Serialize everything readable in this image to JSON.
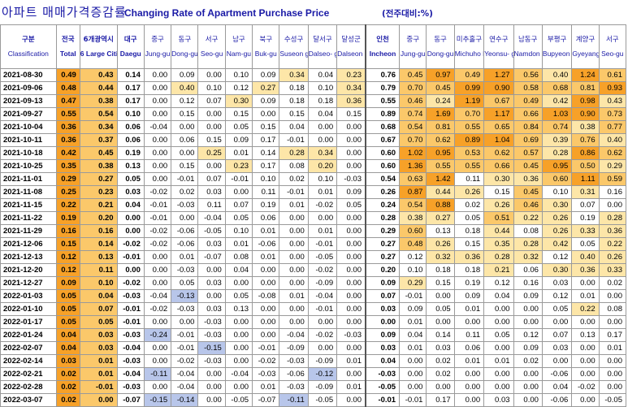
{
  "title_ko": "아파트 매매가격증감률",
  "title_en": "Changing Rate of Apartment Purchase Price",
  "unit": "(전주대비:%)",
  "columns": [
    {
      "ko": "구분",
      "en": "Classification"
    },
    {
      "ko": "전국",
      "en": "Total"
    },
    {
      "ko": "6개광역시",
      "en": "6 Large Cities"
    },
    {
      "ko": "대구",
      "en": "Daegu"
    },
    {
      "ko": "중구",
      "en": "Jung-gu"
    },
    {
      "ko": "동구",
      "en": "Dong-gu"
    },
    {
      "ko": "서구",
      "en": "Seo-gu"
    },
    {
      "ko": "남구",
      "en": "Nam-gu"
    },
    {
      "ko": "북구",
      "en": "Buk-gu"
    },
    {
      "ko": "수성구",
      "en": "Suseon g-gu"
    },
    {
      "ko": "달서구",
      "en": "Dalseo- gu"
    },
    {
      "ko": "달성군",
      "en": "Dalseon g-gun"
    },
    {
      "ko": "인천",
      "en": "Incheon"
    },
    {
      "ko": "중구",
      "en": "Jung-gu"
    },
    {
      "ko": "동구",
      "en": "Dong-gu"
    },
    {
      "ko": "미추홀구",
      "en": "Michuho l-gu"
    },
    {
      "ko": "연수구",
      "en": "Yeonsu- gu"
    },
    {
      "ko": "남동구",
      "en": "Namdon g-gu"
    },
    {
      "ko": "부평구",
      "en": "Bupyeon g-gu"
    },
    {
      "ko": "계양구",
      "en": "Gyeyang -gu"
    },
    {
      "ko": "서구",
      "en": "Seo-gu"
    }
  ],
  "rows": [
    [
      "2021-08-30",
      "0.49",
      "0.43",
      "0.14",
      "0.00",
      "0.09",
      "0.00",
      "0.10",
      "0.09",
      "0.34",
      "0.04",
      "0.23",
      "0.76",
      "0.45",
      "0.97",
      "0.49",
      "1.27",
      "0.56",
      "0.40",
      "1.24",
      "0.61"
    ],
    [
      "2021-09-06",
      "0.48",
      "0.44",
      "0.17",
      "0.00",
      "0.40",
      "0.10",
      "0.12",
      "0.27",
      "0.18",
      "0.10",
      "0.34",
      "0.79",
      "0.70",
      "0.45",
      "0.99",
      "0.90",
      "0.58",
      "0.68",
      "0.81",
      "0.93"
    ],
    [
      "2021-09-13",
      "0.47",
      "0.38",
      "0.17",
      "0.00",
      "0.12",
      "0.07",
      "0.30",
      "0.09",
      "0.18",
      "0.18",
      "0.36",
      "0.55",
      "0.46",
      "0.24",
      "1.19",
      "0.67",
      "0.49",
      "0.42",
      "0.98",
      "0.43"
    ],
    [
      "2021-09-27",
      "0.55",
      "0.54",
      "0.10",
      "0.00",
      "0.15",
      "0.00",
      "0.15",
      "0.00",
      "0.15",
      "0.04",
      "0.15",
      "0.89",
      "0.74",
      "1.69",
      "0.70",
      "1.17",
      "0.66",
      "1.03",
      "0.90",
      "0.73"
    ],
    [
      "2021-10-04",
      "0.36",
      "0.34",
      "0.06",
      "-0.04",
      "0.00",
      "0.00",
      "0.05",
      "0.15",
      "0.04",
      "0.00",
      "0.00",
      "0.68",
      "0.54",
      "0.81",
      "0.55",
      "0.65",
      "0.84",
      "0.74",
      "0.38",
      "0.77"
    ],
    [
      "2021-10-11",
      "0.36",
      "0.37",
      "0.06",
      "0.00",
      "0.06",
      "0.15",
      "0.09",
      "0.17",
      "-0.01",
      "0.00",
      "0.00",
      "0.67",
      "0.70",
      "0.62",
      "0.89",
      "1.04",
      "0.69",
      "0.39",
      "0.76",
      "0.40"
    ],
    [
      "2021-10-18",
      "0.42",
      "0.45",
      "0.19",
      "0.00",
      "0.00",
      "0.25",
      "0.01",
      "0.14",
      "0.28",
      "0.34",
      "0.00",
      "0.60",
      "1.02",
      "0.95",
      "0.53",
      "0.62",
      "0.57",
      "0.28",
      "0.86",
      "0.62"
    ],
    [
      "2021-10-25",
      "0.35",
      "0.38",
      "0.13",
      "0.00",
      "0.15",
      "0.00",
      "0.23",
      "0.17",
      "0.08",
      "0.20",
      "0.00",
      "0.60",
      "1.36",
      "0.55",
      "0.55",
      "0.66",
      "0.45",
      "0.95",
      "0.50",
      "0.29"
    ],
    [
      "2021-11-01",
      "0.29",
      "0.27",
      "0.05",
      "0.00",
      "-0.01",
      "0.07",
      "-0.01",
      "0.10",
      "0.02",
      "0.10",
      "-0.03",
      "0.54",
      "0.63",
      "1.42",
      "0.11",
      "0.30",
      "0.36",
      "0.60",
      "1.11",
      "0.59"
    ],
    [
      "2021-11-08",
      "0.25",
      "0.23",
      "0.03",
      "-0.02",
      "0.02",
      "0.03",
      "0.00",
      "0.11",
      "-0.01",
      "0.01",
      "0.09",
      "0.26",
      "0.87",
      "0.44",
      "0.26",
      "0.15",
      "0.45",
      "0.10",
      "0.31",
      "0.16"
    ],
    [
      "2021-11-15",
      "0.22",
      "0.21",
      "0.04",
      "-0.01",
      "-0.03",
      "0.11",
      "0.07",
      "0.19",
      "0.01",
      "-0.02",
      "0.05",
      "0.24",
      "0.54",
      "0.88",
      "0.02",
      "0.26",
      "0.46",
      "0.30",
      "0.07",
      "0.00"
    ],
    [
      "2021-11-22",
      "0.19",
      "0.20",
      "0.00",
      "-0.01",
      "0.00",
      "-0.04",
      "0.05",
      "0.06",
      "0.00",
      "0.00",
      "0.00",
      "0.28",
      "0.38",
      "0.27",
      "0.05",
      "0.51",
      "0.22",
      "0.26",
      "0.19",
      "0.28"
    ],
    [
      "2021-11-29",
      "0.16",
      "0.16",
      "0.00",
      "-0.02",
      "-0.06",
      "-0.05",
      "0.10",
      "0.01",
      "0.00",
      "0.01",
      "0.00",
      "0.29",
      "0.60",
      "0.13",
      "0.18",
      "0.44",
      "0.08",
      "0.26",
      "0.33",
      "0.36"
    ],
    [
      "2021-12-06",
      "0.15",
      "0.14",
      "-0.02",
      "-0.02",
      "-0.06",
      "0.03",
      "0.01",
      "-0.06",
      "0.00",
      "-0.01",
      "0.00",
      "0.27",
      "0.48",
      "0.26",
      "0.15",
      "0.35",
      "0.28",
      "0.42",
      "0.05",
      "0.22"
    ],
    [
      "2021-12-13",
      "0.12",
      "0.13",
      "-0.01",
      "0.00",
      "0.01",
      "-0.07",
      "0.08",
      "0.01",
      "0.00",
      "-0.05",
      "0.00",
      "0.27",
      "0.12",
      "0.32",
      "0.36",
      "0.28",
      "0.32",
      "0.12",
      "0.40",
      "0.26"
    ],
    [
      "2021-12-20",
      "0.12",
      "0.11",
      "0.00",
      "0.00",
      "-0.03",
      "0.00",
      "0.04",
      "0.00",
      "0.00",
      "-0.02",
      "0.00",
      "0.20",
      "0.10",
      "0.18",
      "0.18",
      "0.21",
      "0.06",
      "0.30",
      "0.36",
      "0.33"
    ],
    [
      "2021-12-27",
      "0.09",
      "0.10",
      "-0.02",
      "0.00",
      "0.05",
      "0.03",
      "0.00",
      "0.00",
      "0.00",
      "-0.09",
      "0.00",
      "0.09",
      "0.29",
      "0.15",
      "0.19",
      "0.12",
      "0.16",
      "0.03",
      "0.00",
      "0.02"
    ],
    [
      "2022-01-03",
      "0.05",
      "0.04",
      "-0.03",
      "-0.04",
      "-0.13",
      "0.00",
      "0.05",
      "-0.08",
      "0.01",
      "-0.04",
      "0.00",
      "0.07",
      "-0.01",
      "0.00",
      "0.09",
      "0.04",
      "0.09",
      "0.12",
      "0.01",
      "0.00"
    ],
    [
      "2022-01-10",
      "0.05",
      "0.07",
      "-0.01",
      "-0.02",
      "-0.03",
      "0.03",
      "0.13",
      "0.00",
      "0.00",
      "-0.01",
      "0.00",
      "0.03",
      "0.09",
      "0.05",
      "0.01",
      "0.00",
      "0.00",
      "0.05",
      "0.22",
      "0.08"
    ],
    [
      "2022-01-17",
      "0.05",
      "0.05",
      "-0.01",
      "0.00",
      "0.00",
      "-0.03",
      "0.00",
      "0.00",
      "0.00",
      "0.00",
      "0.00",
      "0.00",
      "0.01",
      "0.00",
      "0.00",
      "0.00",
      "0.00",
      "0.00",
      "0.00",
      "0.00"
    ],
    [
      "2022-01-24",
      "0.04",
      "0.03",
      "-0.03",
      "-0.24",
      "-0.01",
      "-0.03",
      "0.00",
      "0.00",
      "-0.04",
      "-0.02",
      "-0.03",
      "0.09",
      "0.04",
      "0.14",
      "0.11",
      "0.05",
      "0.12",
      "0.07",
      "0.13",
      "0.17"
    ],
    [
      "2022-02-07",
      "0.04",
      "0.03",
      "-0.04",
      "0.00",
      "-0.01",
      "-0.15",
      "0.00",
      "-0.01",
      "-0.09",
      "0.00",
      "0.00",
      "0.03",
      "0.01",
      "0.03",
      "0.06",
      "0.00",
      "0.09",
      "0.03",
      "0.00",
      "0.01"
    ],
    [
      "2022-02-14",
      "0.03",
      "0.01",
      "-0.03",
      "0.00",
      "-0.02",
      "-0.03",
      "0.00",
      "-0.02",
      "-0.03",
      "-0.09",
      "0.01",
      "0.04",
      "0.00",
      "0.02",
      "0.01",
      "0.01",
      "0.02",
      "0.00",
      "0.00",
      "0.00"
    ],
    [
      "2022-02-21",
      "0.02",
      "0.01",
      "-0.04",
      "-0.11",
      "-0.04",
      "0.00",
      "-0.04",
      "-0.03",
      "-0.06",
      "-0.12",
      "0.00",
      "-0.03",
      "0.00",
      "0.02",
      "0.00",
      "0.00",
      "0.00",
      "-0.06",
      "0.00",
      "0.00"
    ],
    [
      "2022-02-28",
      "0.02",
      "-0.01",
      "-0.03",
      "0.00",
      "-0.04",
      "0.00",
      "0.00",
      "0.01",
      "-0.03",
      "-0.09",
      "0.01",
      "-0.05",
      "0.00",
      "0.00",
      "0.00",
      "0.00",
      "0.00",
      "0.04",
      "-0.02",
      "0.00"
    ],
    [
      "2022-03-07",
      "0.02",
      "0.00",
      "-0.07",
      "-0.15",
      "-0.14",
      "0.00",
      "-0.05",
      "-0.07",
      "-0.11",
      "-0.05",
      "0.00",
      "-0.01",
      "-0.01",
      "0.17",
      "0.00",
      "0.03",
      "0.00",
      "-0.06",
      "0.00",
      "-0.05"
    ]
  ],
  "colors": {
    "title": "#1a1aa6",
    "pos_high": "#f7a128",
    "pos_mid": "#fbc86a",
    "pos_low": "#fde6a8",
    "neg_low": "#dfe6f6",
    "neg_high": "#b8c6ea"
  }
}
